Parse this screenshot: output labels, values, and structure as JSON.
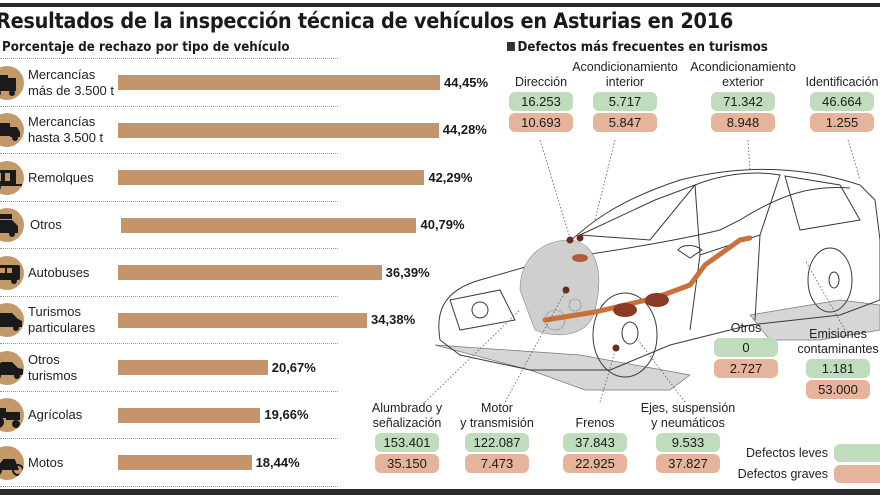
{
  "header": {
    "title": "Resultados de la inspección técnica de vehículos en Asturias en 2016"
  },
  "colors": {
    "bar": "#c4956a",
    "icon_circle": "#c4996a",
    "leves": "#bfdcbc",
    "graves": "#e6b49b",
    "exhaust": "#c8713a"
  },
  "chart_data": [
    {
      "type": "bar",
      "orientation": "horizontal",
      "title": "Porcentaje de rechazo por tipo de vehículo",
      "xlabel": "",
      "ylabel": "",
      "xlim": [
        0,
        50
      ],
      "grid": false,
      "categories": [
        "Mercancías más de 3.500 t",
        "Mercancías hasta 3.500 t",
        "Remolques",
        "Otros",
        "Autobuses",
        "Turismos particulares",
        "Otros turismos",
        "Agrícolas",
        "Motos"
      ],
      "label_lines": [
        [
          "Mercancías",
          "más de 3.500 t"
        ],
        [
          "Mercancías",
          "hasta 3.500 t"
        ],
        [
          "Remolques"
        ],
        [
          "Otros"
        ],
        [
          "Autobuses"
        ],
        [
          "Turismos",
          "particulares"
        ],
        [
          "Otros",
          "turismos"
        ],
        [
          "Agrícolas"
        ],
        [
          "Motos"
        ]
      ],
      "icons": [
        "heavy-truck-icon",
        "van-truck-icon",
        "trailer-icon",
        "other-vehicle-icon",
        "bus-icon",
        "car-icon",
        "sedan-icon",
        "tractor-icon",
        "motorcycle-icon"
      ],
      "values": [
        44.45,
        44.28,
        42.29,
        40.79,
        36.39,
        34.38,
        20.67,
        19.66,
        18.44
      ],
      "value_labels": [
        "44,45%",
        "44,28%",
        "42,29%",
        "40,79%",
        "36,39%",
        "34,38%",
        "20,67%",
        "19,66%",
        "18,44%"
      ]
    },
    {
      "type": "table",
      "title": "Defectos más frecuentes en turismos",
      "columns": [
        "Defecto",
        "Defectos leves",
        "Defectos graves"
      ],
      "series": [
        {
          "name": "Defectos leves",
          "values": [
            16253,
            5717,
            71342,
            46664,
            0,
            1181,
            153401,
            122087,
            37843,
            9533
          ]
        },
        {
          "name": "Defectos graves",
          "values": [
            10693,
            5847,
            8948,
            1255,
            2727,
            53000,
            35150,
            7473,
            22925,
            37827
          ]
        }
      ],
      "categories": [
        "Dirección",
        "Acondicionamiento interior",
        "Acondicionamiento exterior",
        "Identificación",
        "Otros",
        "Emisiones contaminantes",
        "Alumbrado y señalización",
        "Motor y transmisión",
        "Frenos",
        "Ejes, suspensión y neumáticos"
      ],
      "items": [
        {
          "label_lines": [
            "",
            "Dirección"
          ],
          "leves": "16.253",
          "graves": "10.693"
        },
        {
          "label_lines": [
            "Acondicionamiento",
            "interior"
          ],
          "leves": "5.717",
          "graves": "5.847"
        },
        {
          "label_lines": [
            "Acondicionamiento",
            "exterior"
          ],
          "leves": "71.342",
          "graves": "8.948"
        },
        {
          "label_lines": [
            "",
            "Identificación"
          ],
          "leves": "46.664",
          "graves": "1.255"
        },
        {
          "label_lines": [
            "",
            "Otros"
          ],
          "leves": "0",
          "graves": "2.727"
        },
        {
          "label_lines": [
            "Emisiones",
            "contaminantes"
          ],
          "leves": "1.181",
          "graves": "53.000"
        },
        {
          "label_lines": [
            "Alumbrado y",
            "señalización"
          ],
          "leves": "153.401",
          "graves": "35.150"
        },
        {
          "label_lines": [
            "Motor",
            "y transmisión"
          ],
          "leves": "122.087",
          "graves": "7.473"
        },
        {
          "label_lines": [
            "",
            "Frenos"
          ],
          "leves": "37.843",
          "graves": "22.925"
        },
        {
          "label_lines": [
            "Ejes, suspensión",
            "y neumáticos"
          ],
          "leves": "9.533",
          "graves": "37.827"
        }
      ],
      "legend": [
        {
          "label": "Defectos leves",
          "key": "leves"
        },
        {
          "label": "Defectos graves",
          "key": "graves"
        }
      ],
      "legend_position": "bottom-right"
    }
  ]
}
